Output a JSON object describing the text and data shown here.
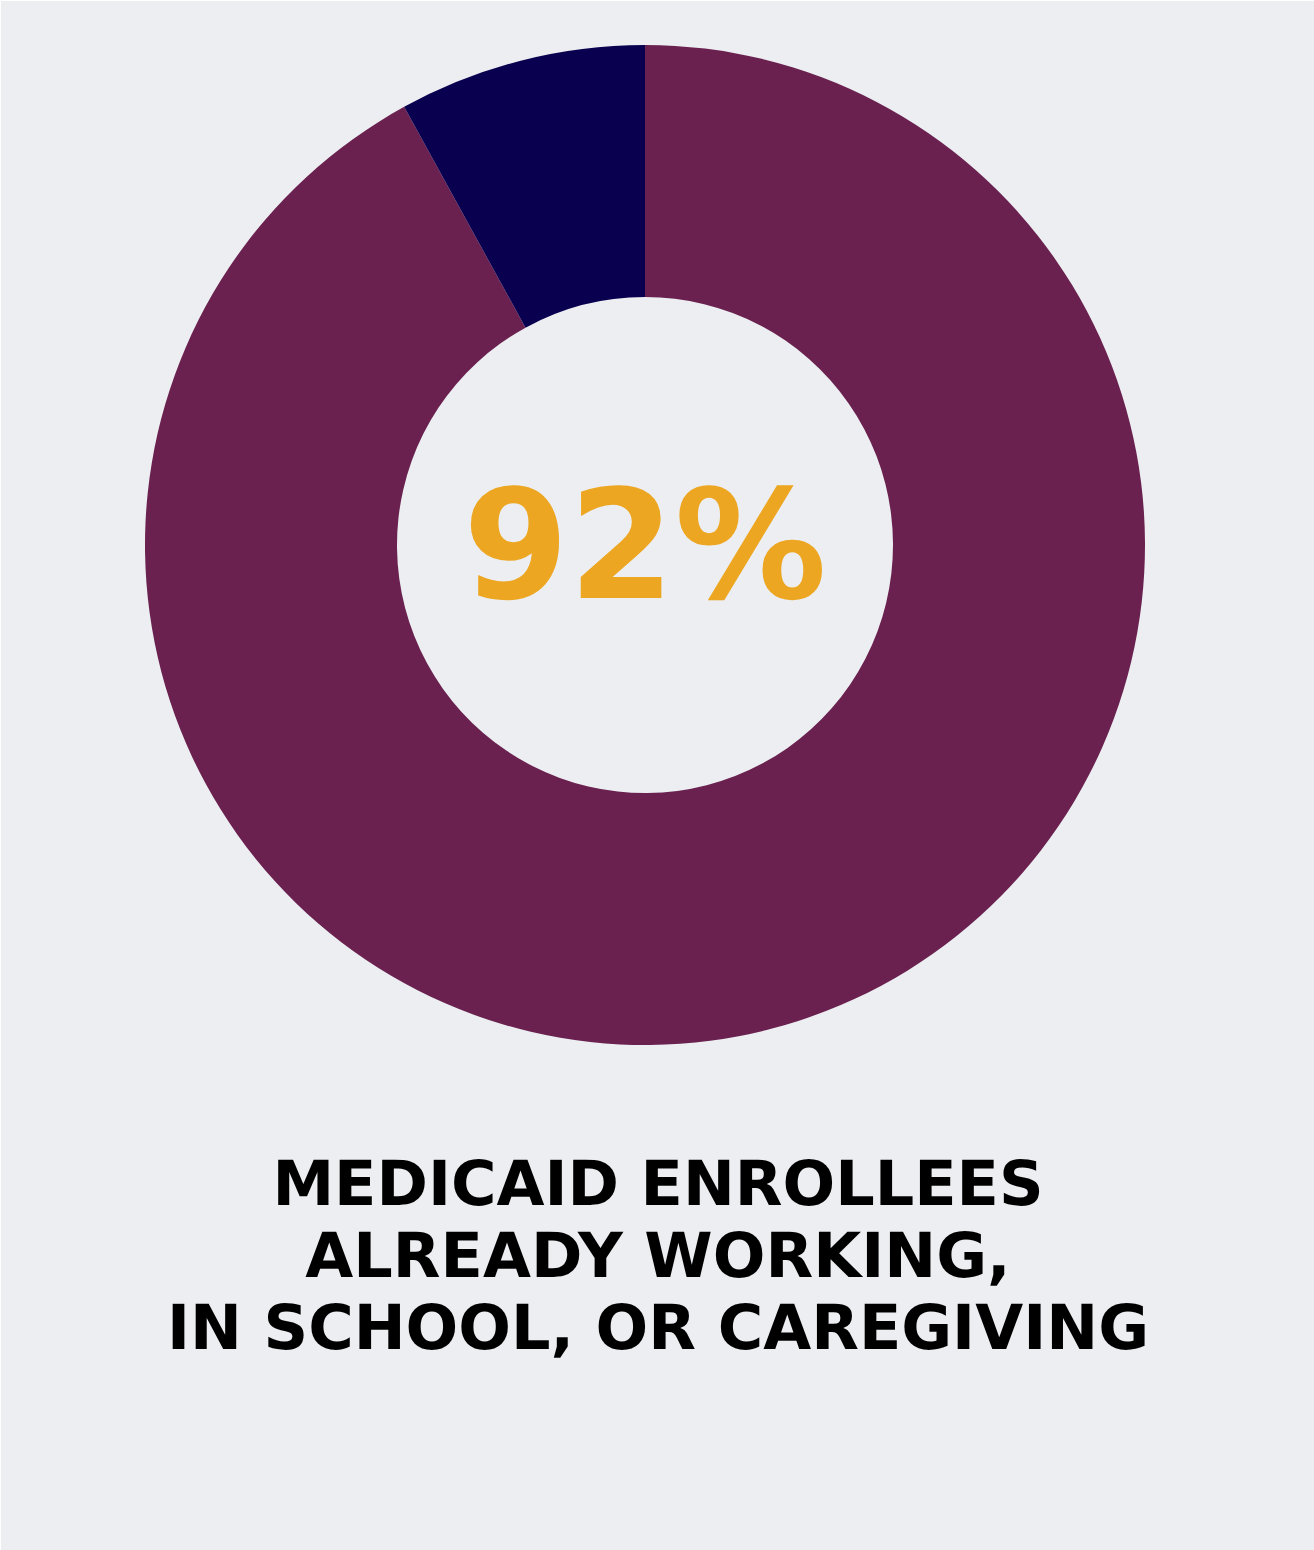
{
  "chart_data": {
    "type": "donut",
    "title": "MEDICAID ENROLLEES\nALREADY WORKING,\nIN SCHOOL, OR CAREGIVING",
    "categories": [
      null,
      null
    ],
    "values": [
      92,
      8
    ],
    "colors": [
      "#6a2150",
      "#0a0050"
    ],
    "annotations": [
      "92%"
    ]
  }
}
